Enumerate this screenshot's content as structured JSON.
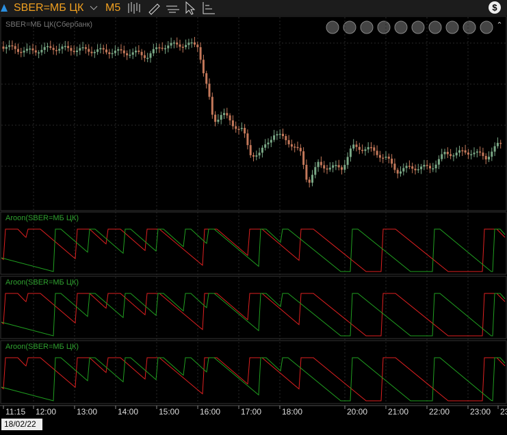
{
  "toolbar": {
    "symbol": "SBER=МБ ЦК",
    "timeframe": "M5"
  },
  "main_panel": {
    "label": "SBER=МБ ЦК(Сбербанк)"
  },
  "indicator_panels": [
    {
      "label": "Aroon(SBER=МБ ЦК)"
    },
    {
      "label": "Aroon(SBER=МБ ЦК)"
    },
    {
      "label": "Aroon(SBER=МБ ЦК)"
    }
  ],
  "time_axis": {
    "labels": [
      "11:15",
      "12:00",
      "13:00",
      "14:00",
      "15:00",
      "16:00",
      "17:00",
      "18:00",
      "20:00",
      "21:00",
      "22:00",
      "23:00",
      "23"
    ],
    "date": "18/02/22"
  }
}
